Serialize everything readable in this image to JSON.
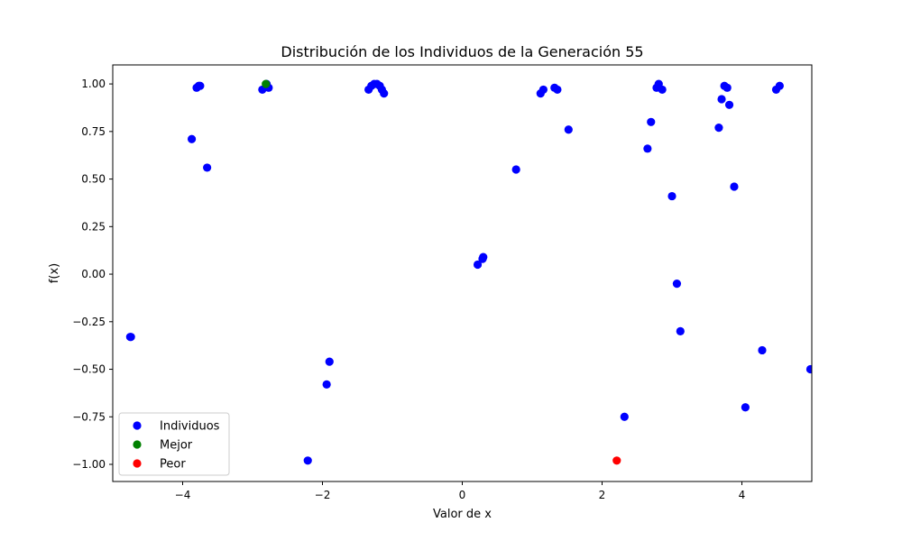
{
  "chart_data": {
    "type": "scatter",
    "title": "Distribución de los Individuos de la Generación 55",
    "xlabel": "Valor de x",
    "ylabel": "f(x)",
    "xlim": [
      -5,
      5
    ],
    "ylim": [
      -1.09,
      1.1
    ],
    "x_ticks": [
      -4,
      -2,
      0,
      2,
      4
    ],
    "x_tick_labels": [
      "−4",
      "−2",
      "0",
      "2",
      "4"
    ],
    "y_ticks": [
      -1.0,
      -0.75,
      -0.5,
      -0.25,
      0.0,
      0.25,
      0.5,
      0.75,
      1.0
    ],
    "y_tick_labels": [
      "−1.00",
      "−0.75",
      "−0.50",
      "−0.25",
      "0.00",
      "0.25",
      "0.50",
      "0.75",
      "1.00"
    ],
    "grid": false,
    "legend_position": "lower-left",
    "series": [
      {
        "name": "Individuos",
        "color": "#0000ff",
        "points": [
          [
            -4.75,
            -0.33
          ],
          [
            -4.74,
            -0.33
          ],
          [
            -3.87,
            0.71
          ],
          [
            -3.8,
            0.98
          ],
          [
            -3.77,
            0.99
          ],
          [
            -3.75,
            0.99
          ],
          [
            -3.65,
            0.56
          ],
          [
            -2.86,
            0.97
          ],
          [
            -2.8,
            1.0
          ],
          [
            -2.77,
            0.98
          ],
          [
            -2.21,
            -0.98
          ],
          [
            -1.94,
            -0.58
          ],
          [
            -1.9,
            -0.46
          ],
          [
            -1.34,
            0.97
          ],
          [
            -1.3,
            0.99
          ],
          [
            -1.26,
            1.0
          ],
          [
            -1.22,
            1.0
          ],
          [
            -1.18,
            0.99
          ],
          [
            -1.15,
            0.97
          ],
          [
            -1.12,
            0.95
          ],
          [
            0.22,
            0.05
          ],
          [
            0.29,
            0.08
          ],
          [
            0.3,
            0.09
          ],
          [
            0.77,
            0.55
          ],
          [
            1.12,
            0.95
          ],
          [
            1.16,
            0.97
          ],
          [
            1.32,
            0.98
          ],
          [
            1.36,
            0.97
          ],
          [
            1.52,
            0.76
          ],
          [
            2.32,
            -0.75
          ],
          [
            2.65,
            0.66
          ],
          [
            2.7,
            0.8
          ],
          [
            2.78,
            0.98
          ],
          [
            2.81,
            1.0
          ],
          [
            2.86,
            0.97
          ],
          [
            3.0,
            0.41
          ],
          [
            3.07,
            -0.05
          ],
          [
            3.12,
            -0.3
          ],
          [
            3.67,
            0.77
          ],
          [
            3.71,
            0.92
          ],
          [
            3.75,
            0.99
          ],
          [
            3.79,
            0.98
          ],
          [
            3.82,
            0.89
          ],
          [
            3.89,
            0.46
          ],
          [
            4.05,
            -0.7
          ],
          [
            4.29,
            -0.4
          ],
          [
            4.49,
            0.97
          ],
          [
            4.54,
            0.99
          ],
          [
            4.98,
            -0.5
          ]
        ]
      },
      {
        "name": "Mejor",
        "color": "#008000",
        "points": [
          [
            -2.81,
            1.0
          ]
        ]
      },
      {
        "name": "Peor",
        "color": "#ff0000",
        "points": [
          [
            2.21,
            -0.98
          ]
        ]
      }
    ]
  }
}
